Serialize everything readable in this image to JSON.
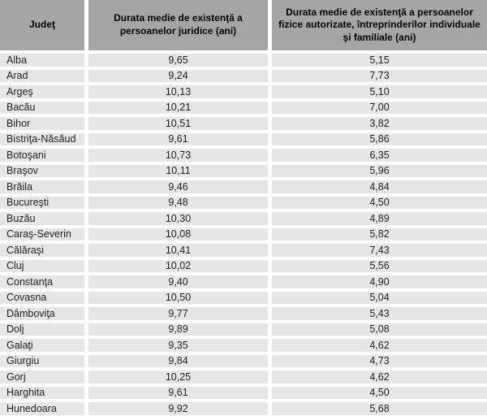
{
  "colors": {
    "header_bg": "#a5a5a5",
    "row_bg": "#e6e6e6",
    "header_text": "#000000",
    "cell_text": "#1f1f1f"
  },
  "table": {
    "headers": {
      "judet": "Judeţ",
      "juridice": "Durata medie de existenţă a persoanelor juridice (ani)",
      "fizice": "Durata medie de existenţă a persoanelor fizice autorizate, întreprinderilor individuale şi familiale (ani)"
    },
    "rows": [
      [
        "Alba",
        "9,65",
        "5,15"
      ],
      [
        "Arad",
        "9,24",
        "7,73"
      ],
      [
        "Argeş",
        "10,13",
        "5,10"
      ],
      [
        "Bacău",
        "10,21",
        "7,00"
      ],
      [
        "Bihor",
        "10,51",
        "3,82"
      ],
      [
        "Bistriţa-Năsăud",
        "9,61",
        "5,86"
      ],
      [
        "Botoşani",
        "10,73",
        "6,35"
      ],
      [
        "Braşov",
        "10,11",
        "5,96"
      ],
      [
        "Brăila",
        "9,46",
        "4,84"
      ],
      [
        "Bucureşti",
        "9,48",
        "4,50"
      ],
      [
        "Buzău",
        "10,30",
        "4,89"
      ],
      [
        "Caraş-Severin",
        "10,08",
        "5,82"
      ],
      [
        "Călăraşi",
        "10,41",
        "7,43"
      ],
      [
        "Cluj",
        "10,02",
        "5,56"
      ],
      [
        "Constanţa",
        "9,40",
        "4,90"
      ],
      [
        "Covasna",
        "10,50",
        "5,04"
      ],
      [
        "Dâmboviţa",
        "9,77",
        "5,43"
      ],
      [
        "Dolj",
        "9,89",
        "5,08"
      ],
      [
        "Galaţi",
        "9,35",
        "4,62"
      ],
      [
        "Giurgiu",
        "9,84",
        "4,73"
      ],
      [
        "Gorj",
        "10,25",
        "4,62"
      ],
      [
        "Harghita",
        "9,61",
        "4,50"
      ],
      [
        "Hunedoara",
        "9,92",
        "5,68"
      ]
    ]
  },
  "chart_data": {
    "type": "table",
    "title": "",
    "columns": [
      "Judeţ",
      "Durata medie de existenţă a persoanelor juridice (ani)",
      "Durata medie de existenţă a persoanelor fizice autorizate, întreprinderilor individuale şi familiale (ani)"
    ],
    "categories": [
      "Alba",
      "Arad",
      "Argeş",
      "Bacău",
      "Bihor",
      "Bistriţa-Năsăud",
      "Botoşani",
      "Braşov",
      "Brăila",
      "Bucureşti",
      "Buzău",
      "Caraş-Severin",
      "Călăraşi",
      "Cluj",
      "Constanţa",
      "Covasna",
      "Dâmboviţa",
      "Dolj",
      "Galaţi",
      "Giurgiu",
      "Gorj",
      "Harghita",
      "Hunedoara"
    ],
    "series": [
      {
        "name": "Durata medie de existenţă a persoanelor juridice (ani)",
        "values": [
          9.65,
          9.24,
          10.13,
          10.21,
          10.51,
          9.61,
          10.73,
          10.11,
          9.46,
          9.48,
          10.3,
          10.08,
          10.41,
          10.02,
          9.4,
          10.5,
          9.77,
          9.89,
          9.35,
          9.84,
          10.25,
          9.61,
          9.92
        ]
      },
      {
        "name": "Durata medie de existenţă a persoanelor fizice autorizate, întreprinderilor individuale şi familiale (ani)",
        "values": [
          5.15,
          7.73,
          5.1,
          7.0,
          3.82,
          5.86,
          6.35,
          5.96,
          4.84,
          4.5,
          4.89,
          5.82,
          7.43,
          5.56,
          4.9,
          5.04,
          5.43,
          5.08,
          4.62,
          4.73,
          4.62,
          4.5,
          5.68
        ]
      }
    ],
    "decimal_separator": ","
  }
}
